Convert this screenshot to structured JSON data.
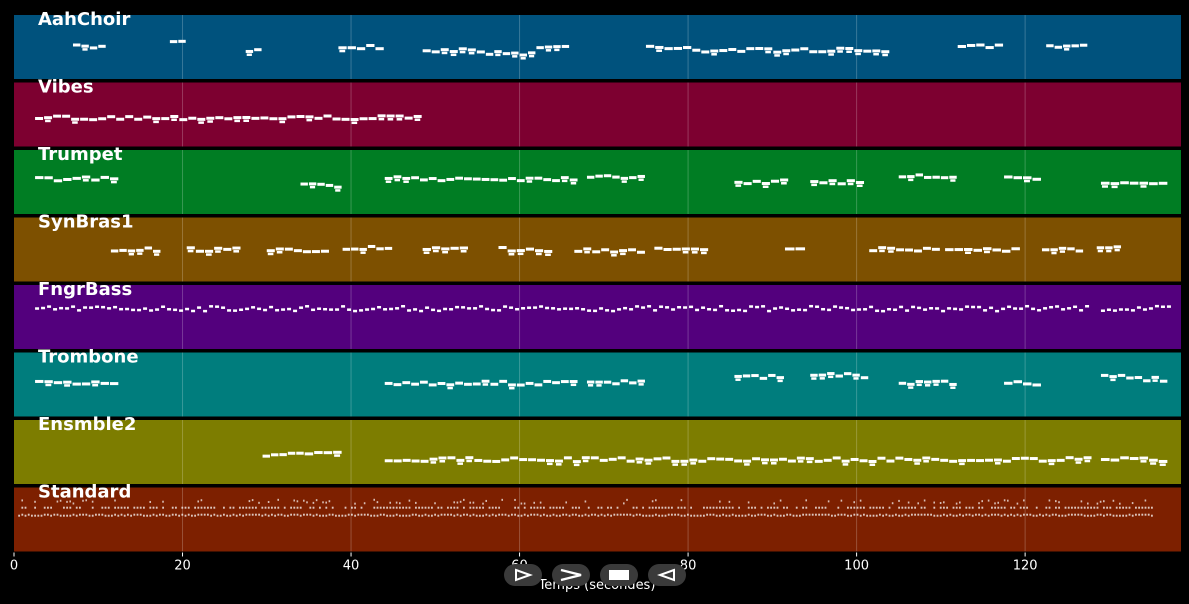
{
  "chart_data": {
    "type": "piano-roll",
    "xlabel": "Temps (secondes)",
    "xlim": [
      0,
      138.5
    ],
    "xticks": [
      0,
      20,
      40,
      60,
      80,
      100,
      120
    ],
    "grid": true,
    "tracks": [
      {
        "name": "AahChoir",
        "color": "#00527d",
        "notes": [
          [
            7,
            11,
            0.5
          ],
          [
            18.5,
            20.5,
            0.4
          ],
          [
            27.5,
            29.5,
            0.55
          ],
          [
            38.5,
            44,
            0.5
          ],
          [
            48.5,
            56,
            0.55
          ],
          [
            56,
            62,
            0.6
          ],
          [
            62,
            66,
            0.5
          ],
          [
            75,
            80.5,
            0.5
          ],
          [
            80.5,
            104,
            0.55
          ],
          [
            112,
            117.5,
            0.5
          ],
          [
            122.5,
            127.5,
            0.5
          ]
        ]
      },
      {
        "name": "Vibes",
        "color": "#7d0030",
        "notes": [
          [
            2.5,
            48.5,
            0.55
          ]
        ]
      },
      {
        "name": "Trumpet",
        "color": "#007d23",
        "notes": [
          [
            2.5,
            12.5,
            0.45
          ],
          [
            34,
            39,
            0.55
          ],
          [
            44,
            67,
            0.45
          ],
          [
            68,
            72,
            0.4
          ],
          [
            72,
            75,
            0.42
          ],
          [
            85.5,
            92,
            0.5
          ],
          [
            94.5,
            101,
            0.5
          ],
          [
            105,
            109,
            0.4
          ],
          [
            109,
            112,
            0.42
          ],
          [
            117.5,
            122,
            0.45
          ],
          [
            129,
            137,
            0.5
          ]
        ]
      },
      {
        "name": "SynBras1",
        "color": "#7d5000",
        "notes": [
          [
            11.5,
            17.5,
            0.5
          ],
          [
            20.5,
            27,
            0.5
          ],
          [
            30,
            37.5,
            0.52
          ],
          [
            39,
            45,
            0.48
          ],
          [
            48.5,
            54,
            0.5
          ],
          [
            57.5,
            64,
            0.5
          ],
          [
            66.5,
            75,
            0.52
          ],
          [
            76,
            82.5,
            0.48
          ],
          [
            91.5,
            94,
            0.47
          ],
          [
            101.5,
            110,
            0.5
          ],
          [
            110.5,
            119.5,
            0.5
          ],
          [
            122,
            127,
            0.5
          ],
          [
            128.5,
            131.5,
            0.48
          ]
        ]
      },
      {
        "name": "FngrBass",
        "color": "#53007d",
        "notes": [
          [
            2.5,
            127.5,
            0.35
          ],
          [
            129,
            137,
            0.35
          ]
        ]
      },
      {
        "name": "Trombone",
        "color": "#007d7d",
        "notes": [
          [
            2.5,
            12.5,
            0.48
          ],
          [
            44,
            67,
            0.48
          ],
          [
            68,
            75,
            0.47
          ],
          [
            85.5,
            91.5,
            0.38
          ],
          [
            94.5,
            99.5,
            0.36
          ],
          [
            99.5,
            101.5,
            0.38
          ],
          [
            105,
            112,
            0.47
          ],
          [
            117.5,
            122,
            0.48
          ],
          [
            129,
            134,
            0.38
          ],
          [
            134,
            137,
            0.42
          ]
        ]
      },
      {
        "name": "Ensmble2",
        "color": "#7d7d00",
        "notes": [
          [
            29.5,
            34.5,
            0.55
          ],
          [
            34.5,
            39,
            0.53
          ],
          [
            44,
            128,
            0.62
          ],
          [
            129,
            137,
            0.62
          ]
        ]
      },
      {
        "name": "Standard",
        "color": "#7d2000",
        "notes": [
          [
            0.5,
            135,
            0.3
          ]
        ]
      }
    ]
  },
  "controls": [
    {
      "name": "play-forward-button",
      "icon": "play-outline-icon"
    },
    {
      "name": "next-button",
      "icon": "chevron-right-icon"
    },
    {
      "name": "stop-button",
      "icon": "stop-icon"
    },
    {
      "name": "play-reverse-button",
      "icon": "play-reverse-outline-icon"
    }
  ]
}
